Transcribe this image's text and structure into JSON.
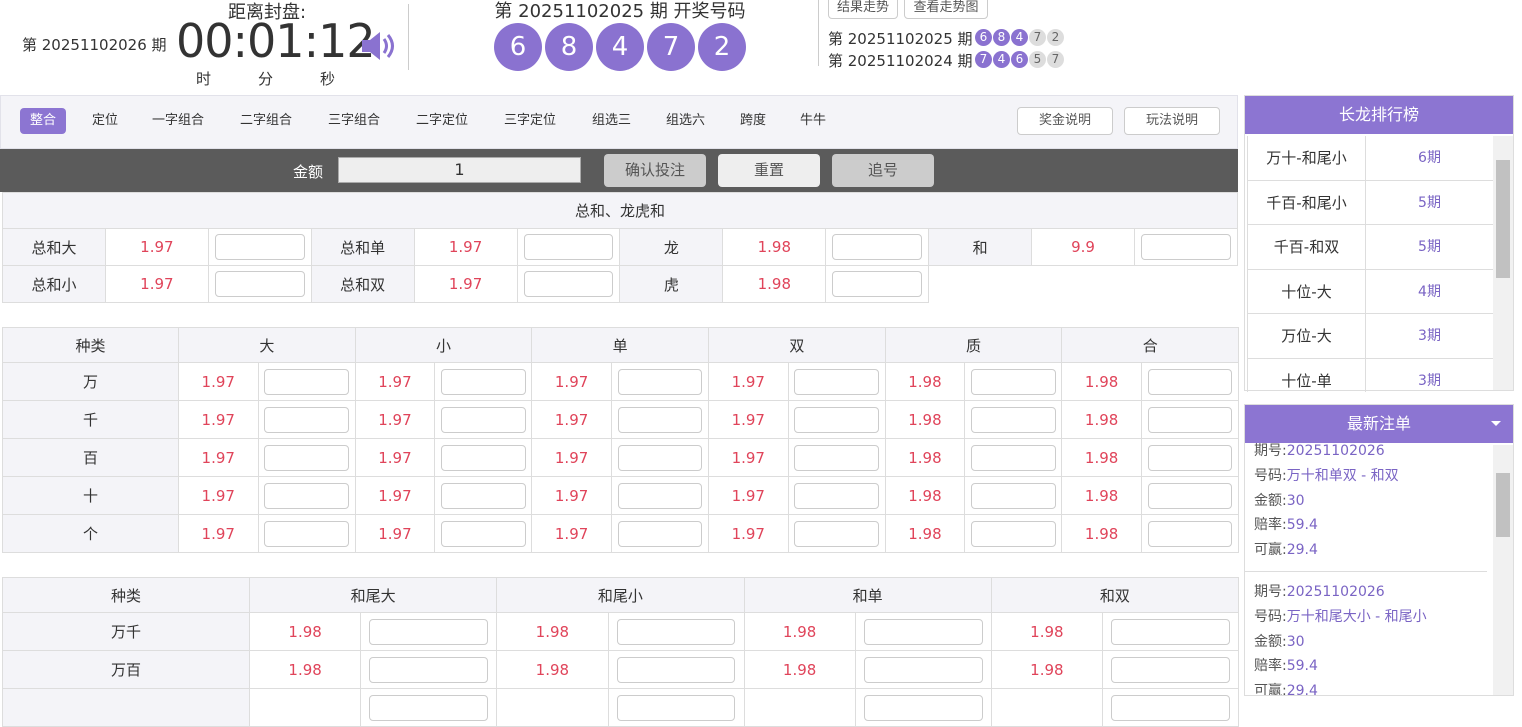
{
  "header": {
    "current_period": "第 20251102026 期",
    "countdown_label": "距离封盘:",
    "countdown": "00:01:12",
    "time_units": [
      "时",
      "分",
      "秒"
    ],
    "draw_title": "第 20251102025 期 开奖号码",
    "draw_numbers": [
      6,
      8,
      4,
      7,
      2
    ],
    "buttons": [
      "结果走势",
      "查看走势图"
    ],
    "history": [
      {
        "period": "第 20251102025 期",
        "numbers": [
          6,
          8,
          4,
          7,
          2
        ]
      },
      {
        "period": "第 20251102024 期",
        "numbers": [
          7,
          4,
          6,
          5,
          7
        ]
      }
    ]
  },
  "tabs": {
    "items": [
      "整合",
      "定位",
      "一字组合",
      "二字组合",
      "三字组合",
      "二字定位",
      "三字定位",
      "组选三",
      "组选六",
      "跨度",
      "牛牛"
    ],
    "right_buttons": [
      "奖金说明",
      "玩法说明"
    ]
  },
  "bet_bar": {
    "amount_label": "金额",
    "amount": 1,
    "buttons": [
      "确认投注",
      "重置",
      "追号"
    ]
  },
  "section1": {
    "title": "总和、龙虎和",
    "rows": [
      [
        {
          "name": "总和大",
          "odds": 1.97
        },
        {
          "name": "总和单",
          "odds": 1.97
        },
        {
          "name": "龙",
          "odds": 1.98
        },
        {
          "name": "和",
          "odds": 9.9
        }
      ],
      [
        {
          "name": "总和小",
          "odds": 1.97
        },
        {
          "name": "总和双",
          "odds": 1.97
        },
        {
          "name": "虎",
          "odds": 1.98
        }
      ]
    ]
  },
  "section2": {
    "headers": [
      "种类",
      "大",
      "小",
      "单",
      "双",
      "质",
      "合"
    ],
    "rows": [
      {
        "name": "万",
        "odds": [
          1.97,
          1.97,
          1.97,
          1.97,
          1.98,
          1.98
        ]
      },
      {
        "name": "千",
        "odds": [
          1.97,
          1.97,
          1.97,
          1.97,
          1.98,
          1.98
        ]
      },
      {
        "name": "百",
        "odds": [
          1.97,
          1.97,
          1.97,
          1.97,
          1.98,
          1.98
        ]
      },
      {
        "name": "十",
        "odds": [
          1.97,
          1.97,
          1.97,
          1.97,
          1.98,
          1.98
        ]
      },
      {
        "name": "个",
        "odds": [
          1.97,
          1.97,
          1.97,
          1.97,
          1.98,
          1.98
        ]
      }
    ]
  },
  "section3": {
    "headers": [
      "种类",
      "和尾大",
      "和尾小",
      "和单",
      "和双"
    ],
    "rows": [
      {
        "name": "万千",
        "odds": [
          1.98,
          1.98,
          1.98,
          1.98
        ]
      },
      {
        "name": "万百",
        "odds": [
          1.98,
          1.98,
          1.98,
          1.98
        ]
      }
    ]
  },
  "sidebar": {
    "dragon_title": "长龙排行榜",
    "dragon_items": [
      {
        "name": "万十-和尾小",
        "count": "6期"
      },
      {
        "name": "千百-和尾小",
        "count": "5期"
      },
      {
        "name": "千百-和双",
        "count": "5期"
      },
      {
        "name": "十位-大",
        "count": "4期"
      },
      {
        "name": "万位-大",
        "count": "3期"
      },
      {
        "name": "十位-单",
        "count": "3期"
      }
    ],
    "latest_title": "最新注单",
    "orders": [
      {
        "fields": [
          {
            "label": "期号:",
            "value": "20251102026"
          },
          {
            "label": "号码:",
            "value": "万十和单双 - 和双"
          },
          {
            "label": "金额:",
            "value": "30"
          },
          {
            "label": "赔率:",
            "value": "59.4"
          },
          {
            "label": "可赢:",
            "value": "29.4"
          }
        ]
      },
      {
        "fields": [
          {
            "label": "期号:",
            "value": "20251102026"
          },
          {
            "label": "号码:",
            "value": "万十和尾大小 - 和尾小"
          },
          {
            "label": "金额:",
            "value": "30"
          },
          {
            "label": "赔率:",
            "value": "59.4"
          },
          {
            "label": "可赢:",
            "value": "29.4"
          }
        ]
      }
    ]
  }
}
